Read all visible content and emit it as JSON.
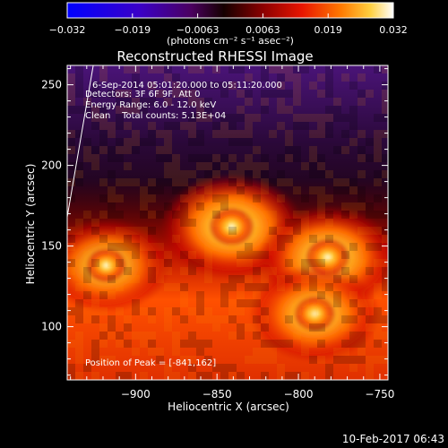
{
  "chart_data": {
    "type": "heatmap",
    "title": "Reconstructed RHESSI Image",
    "xlabel": "Heliocentric X (arcsec)",
    "ylabel": "Heliocentric Y (arcsec)",
    "xlim": [
      -942,
      -745
    ],
    "ylim": [
      67,
      262
    ],
    "x_ticks": [
      -900,
      -850,
      -800,
      -750
    ],
    "x_tick_labels": [
      "−900",
      "−850",
      "−800",
      "−750"
    ],
    "y_ticks": [
      100,
      150,
      200,
      250
    ],
    "y_tick_labels": [
      "100",
      "150",
      "200",
      "250"
    ],
    "colorbar": {
      "range": [
        -0.032,
        0.032
      ],
      "tick_labels": [
        "−0.032",
        "−0.019",
        "−0.0063",
        "0.0063",
        "0.019",
        "0.032"
      ],
      "units": "(photons cm⁻² s⁻¹ asec⁻²)",
      "colors": [
        "#0000ff",
        "#2a00d0",
        "#4b0082",
        "#1a0000",
        "#8b0000",
        "#e01000",
        "#ff6a00",
        "#ffc000",
        "#ffffc0",
        "#ffffff"
      ]
    },
    "annotations": [
      "6-Sep-2014 05:01:20.000 to 05:11:20.000",
      "Detectors: 3F 6F 9F, Att 0",
      "Energy Range: 6.0 - 12.0 keV",
      "Clean    Total counts: 5.13E+04",
      "Position of Peak = [-841,162]"
    ],
    "sources": [
      {
        "x": -841,
        "y": 162,
        "relative_intensity": 1.0
      },
      {
        "x": -782,
        "y": 143,
        "relative_intensity": 0.95
      },
      {
        "x": -790,
        "y": 108,
        "relative_intensity": 0.8
      },
      {
        "x": -918,
        "y": 138,
        "relative_intensity": 0.75
      }
    ],
    "limb_curve": [
      [
        -942,
        168
      ],
      [
        -926,
        262
      ]
    ],
    "grid": false
  },
  "footer": {
    "timestamp": "10-Feb-2017 06:43"
  }
}
